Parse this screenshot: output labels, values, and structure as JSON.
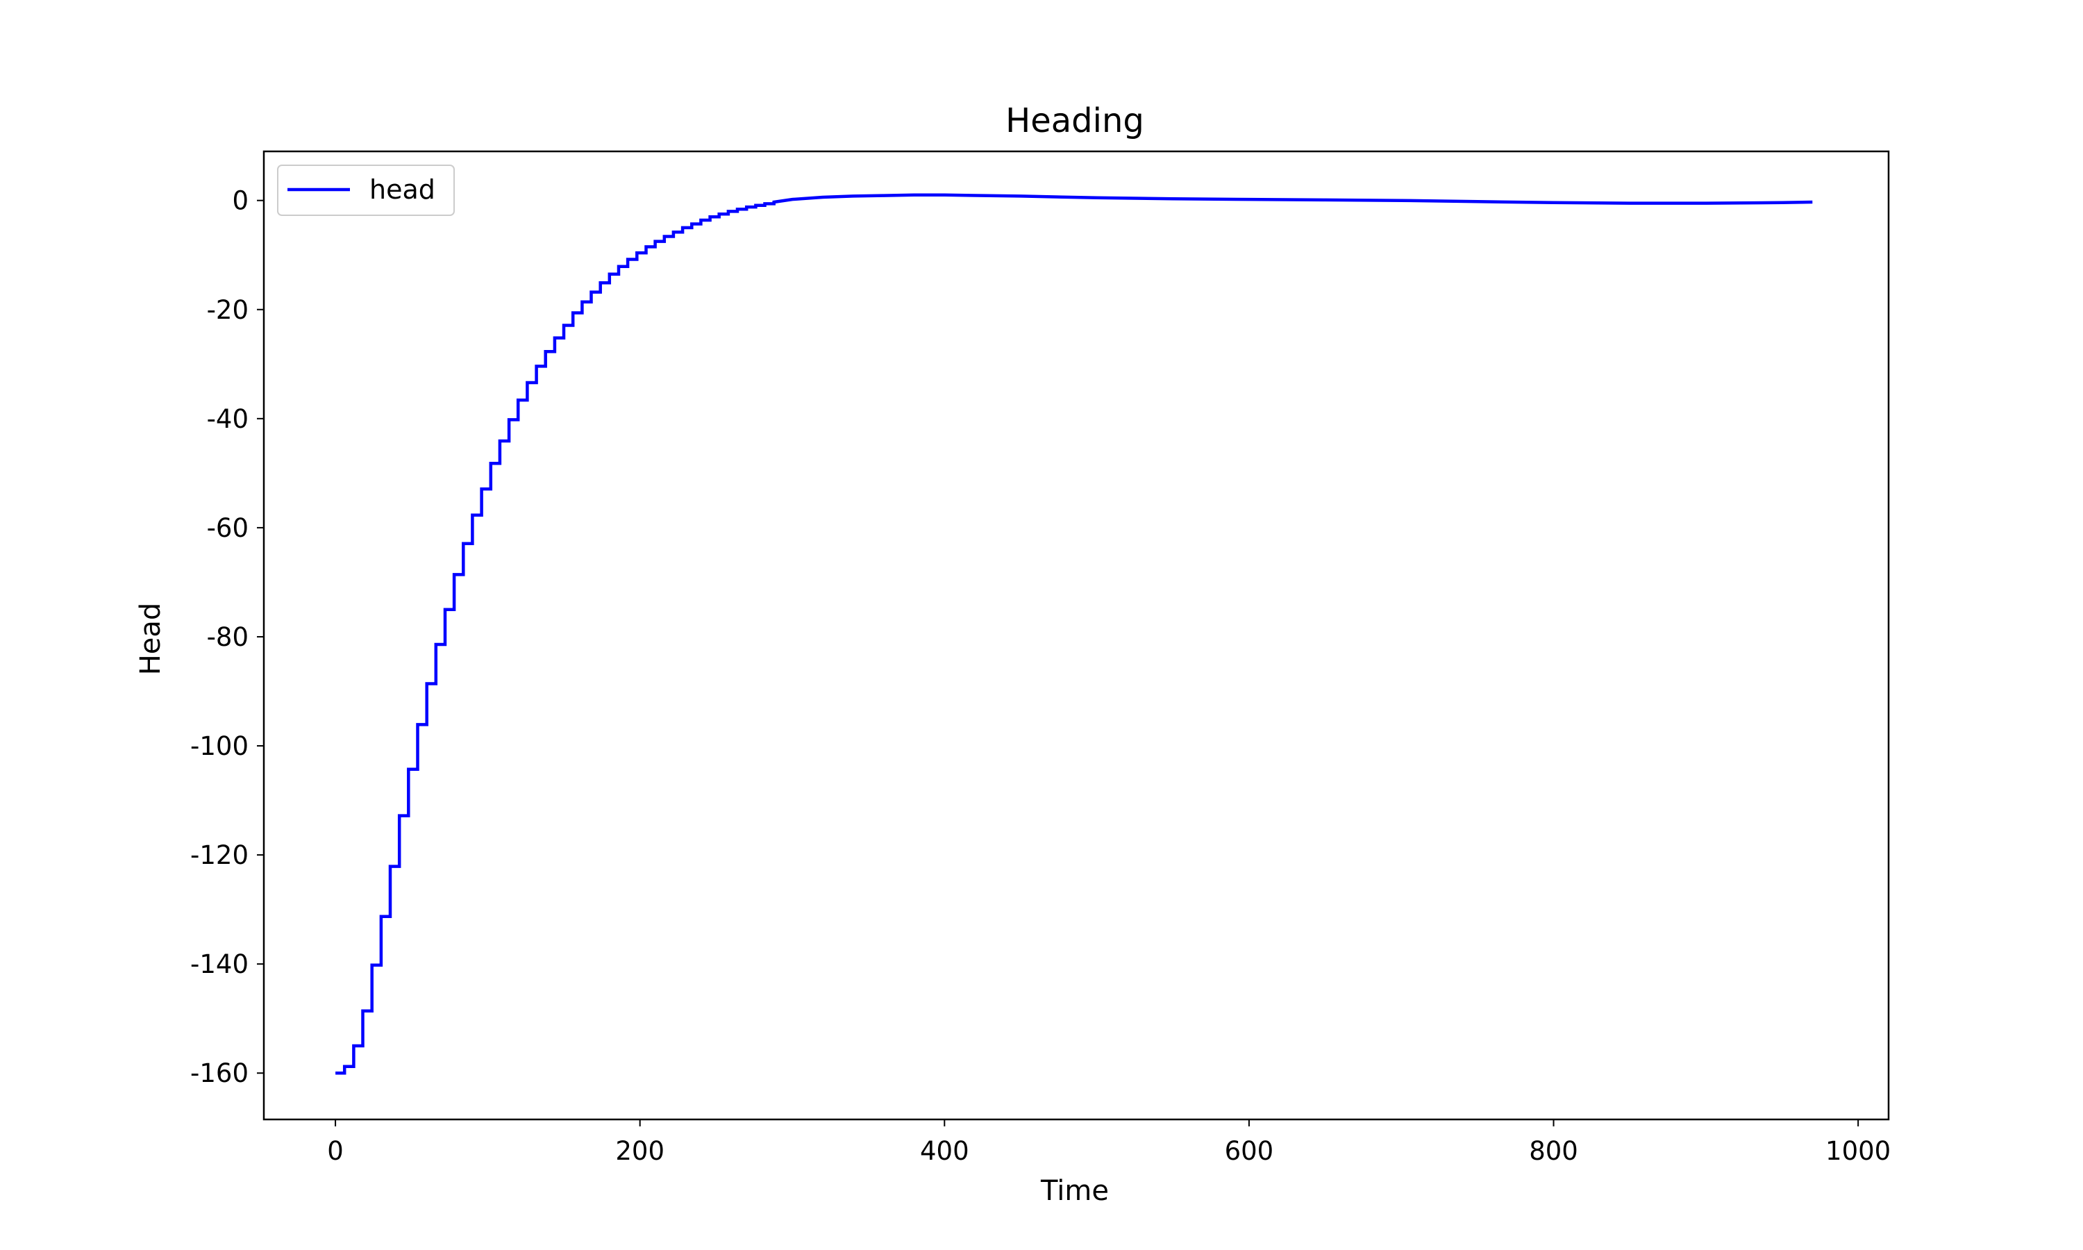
{
  "chart_data": {
    "type": "line",
    "title": "Heading",
    "xlabel": "Time",
    "ylabel": "Head",
    "xlim": [
      -47,
      1020
    ],
    "ylim": [
      -168.5,
      9
    ],
    "xticks": [
      0,
      200,
      400,
      600,
      800,
      1000
    ],
    "yticks": [
      0,
      -20,
      -40,
      -60,
      -80,
      -100,
      -120,
      -140,
      -160
    ],
    "grid": false,
    "legend": {
      "position": "top-left",
      "entries": [
        "head"
      ]
    },
    "colors": {
      "head": "#0000ff"
    },
    "series": [
      {
        "name": "head",
        "x": [
          0,
          6,
          12,
          18,
          24,
          30,
          36,
          42,
          48,
          54,
          60,
          66,
          72,
          78,
          84,
          90,
          96,
          102,
          108,
          114,
          120,
          126,
          132,
          138,
          144,
          150,
          156,
          162,
          168,
          174,
          180,
          186,
          192,
          198,
          204,
          210,
          216,
          222,
          228,
          234,
          240,
          246,
          252,
          258,
          264,
          270,
          276,
          282,
          288,
          300,
          320,
          340,
          360,
          380,
          400,
          450,
          500,
          550,
          600,
          650,
          700,
          750,
          800,
          850,
          900,
          950,
          970
        ],
        "y": [
          -160,
          -158.8,
          -155,
          -148.6,
          -140.2,
          -131.3,
          -122.1,
          -112.8,
          -104.3,
          -96.1,
          -88.6,
          -81.4,
          -75,
          -68.6,
          -62.9,
          -57.7,
          -52.9,
          -48.2,
          -44.1,
          -40.2,
          -36.6,
          -33.4,
          -30.4,
          -27.7,
          -25.2,
          -22.9,
          -20.6,
          -18.6,
          -16.8,
          -15.1,
          -13.5,
          -12.1,
          -10.8,
          -9.6,
          -8.5,
          -7.5,
          -6.6,
          -5.8,
          -5,
          -4.3,
          -3.6,
          -3,
          -2.5,
          -2,
          -1.6,
          -1.2,
          -0.9,
          -0.6,
          -0.3,
          0.2,
          0.6,
          0.8,
          0.9,
          1,
          1,
          0.8,
          0.5,
          0.3,
          0.2,
          0.1,
          0,
          -0.2,
          -0.4,
          -0.5,
          -0.5,
          -0.4,
          -0.3
        ]
      }
    ]
  }
}
